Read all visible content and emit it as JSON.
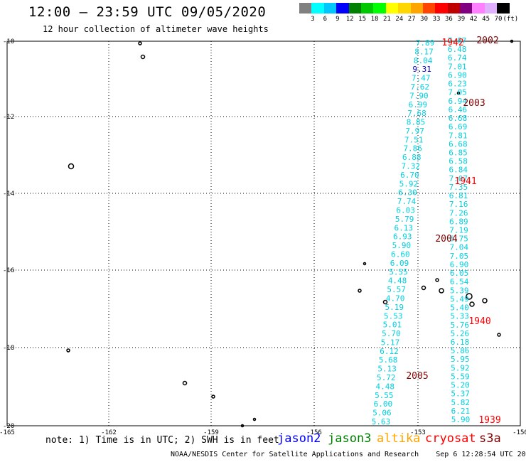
{
  "header": {
    "title": "12:00 – 23:59 UTC 09/05/2020",
    "subtitle": "12 hour collection of altimeter wave heights"
  },
  "color_scale": {
    "labels": [
      "3",
      "6",
      "9",
      "12",
      "15",
      "18",
      "21",
      "24",
      "27",
      "30",
      "33",
      "36",
      "39",
      "42",
      "45",
      "70",
      "(ft)"
    ],
    "colors": [
      "#808080",
      "#00ffff",
      "#00c8ff",
      "#0000ff",
      "#008000",
      "#00c800",
      "#00ff00",
      "#ffff00",
      "#ffd700",
      "#ffa500",
      "#ff4500",
      "#ff0000",
      "#c00000",
      "#800080",
      "#ff80ff",
      "#e0b0ff",
      "#000000"
    ]
  },
  "map": {
    "lon_labels": [
      "-165",
      "-162",
      "-159",
      "-156",
      "-153",
      "-150"
    ],
    "lat_labels": [
      "-10",
      "-12",
      "-14",
      "-16",
      "-18",
      "-20"
    ]
  },
  "tracks": {
    "track_a": [
      "7.89",
      "8.17",
      "8.04",
      "9.31",
      "7.47",
      "7.62",
      "7.90",
      "6.99",
      "7.68",
      "8.85",
      "7.97",
      "7.51",
      "7.86",
      "6.88",
      "7.32",
      "6.70",
      "5.92",
      "6.30",
      "7.74",
      "6.03",
      "5.79",
      "6.13",
      "6.93",
      "5.90",
      "6.60",
      "6.09",
      "5.55",
      "4.48",
      "5.57",
      "4.70",
      "5.19",
      "5.53",
      "5.01",
      "5.70",
      "5.17",
      "6.12",
      "5.68",
      "5.13",
      "5.72",
      "4.48",
      "5.55",
      "6.00",
      "5.06",
      "5.63"
    ],
    "track_b": [
      "7.87",
      "6.48",
      "6.74",
      "7.01",
      "6.90",
      "6.23",
      "7.05",
      "6.94",
      "6.46",
      "6.68",
      "6.69",
      "7.81",
      "6.68",
      "6.85",
      "6.58",
      "6.84",
      "7.07",
      "7.35",
      "6.81",
      "7.16",
      "7.26",
      "6.89",
      "7.19",
      "6.75",
      "7.04",
      "7.05",
      "6.90",
      "6.05",
      "6.54",
      "5.39",
      "5.49",
      "5.40",
      "5.33",
      "5.76",
      "5.26",
      "6.18",
      "5.86",
      "5.95",
      "5.92",
      "5.59",
      "5.20",
      "5.37",
      "5.82",
      "6.21",
      "5.90"
    ],
    "track_a_color": "#00d0e0",
    "track_b_color": "#00d0e0",
    "highlight_color": "#0000c0",
    "highlight_value": "9.31"
  },
  "hour_labels": [
    {
      "text": "1942",
      "color": "#ff0000"
    },
    {
      "text": "2002",
      "color": "#800000"
    },
    {
      "text": "2003",
      "color": "#800000"
    },
    {
      "text": "1941",
      "color": "#ff0000"
    },
    {
      "text": "2004",
      "color": "#800000"
    },
    {
      "text": "1940",
      "color": "#ff0000"
    },
    {
      "text": "2005",
      "color": "#800000"
    },
    {
      "text": "1939",
      "color": "#ff0000"
    }
  ],
  "note": "note: 1) Time is in UTC; 2) SWH is in feet",
  "legend": [
    {
      "label": "jason2",
      "color": "#0000ff"
    },
    {
      "label": "jason3",
      "color": "#008000"
    },
    {
      "label": "altika",
      "color": "#ffa500"
    },
    {
      "label": "cryosat",
      "color": "#ff0000"
    },
    {
      "label": "s3a",
      "color": "#800000"
    }
  ],
  "footer": {
    "credit": "NOAA/NESDIS Center for Satellite Applications and Research",
    "date": "Sep  6 12:28:54 UTC 2020"
  }
}
